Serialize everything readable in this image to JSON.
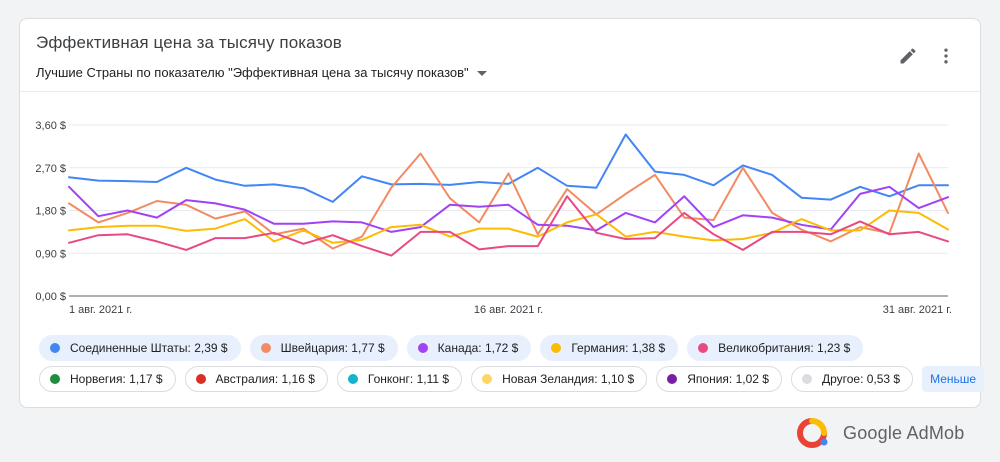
{
  "card": {
    "title": "Эффективная цена за тысячу показов",
    "subtitle": "Лучшие Страны по показателю \"Эффективная цена за тысячу показов\"",
    "edit_icon": "pencil-icon",
    "more_icon": "more-vert-icon"
  },
  "chart_data": {
    "type": "line",
    "y_ticks": [
      "3,60 $",
      "2,70 $",
      "1,80 $",
      "0,90 $",
      "0,00 $"
    ],
    "ylim": [
      0,
      3.6
    ],
    "x": [
      "1 авг. 2021 г.",
      "2",
      "3",
      "4",
      "5",
      "6",
      "7",
      "8",
      "9",
      "10",
      "11",
      "12",
      "13",
      "14",
      "15",
      "16 авг. 2021 г.",
      "17",
      "18",
      "19",
      "20",
      "21",
      "22",
      "23",
      "24",
      "25",
      "26",
      "27",
      "28",
      "29",
      "30",
      "31 авг. 2021 г."
    ],
    "x_tick_labels": [
      "1 авг. 2021 г.",
      "16 авг. 2021 г.",
      "31 авг. 2021 г."
    ],
    "grid": true,
    "series": [
      {
        "name": "Соединенные Штаты",
        "color": "#4285f4",
        "values": [
          2.5,
          2.43,
          2.42,
          2.4,
          2.7,
          2.45,
          2.32,
          2.35,
          2.27,
          1.98,
          2.52,
          2.35,
          2.36,
          2.34,
          2.4,
          2.36,
          2.7,
          2.32,
          2.28,
          3.4,
          2.62,
          2.55,
          2.33,
          2.75,
          2.55,
          2.07,
          2.03,
          2.3,
          2.1,
          2.33,
          2.33
        ]
      },
      {
        "name": "Швейцария",
        "color": "#f28b63",
        "values": [
          1.95,
          1.55,
          1.75,
          2.0,
          1.92,
          1.63,
          1.78,
          1.3,
          1.42,
          1.0,
          1.25,
          2.28,
          3.0,
          2.06,
          1.55,
          2.58,
          1.3,
          2.25,
          1.72,
          2.15,
          2.55,
          1.65,
          1.6,
          2.7,
          1.75,
          1.4,
          1.15,
          1.45,
          1.32,
          3.0,
          1.75
        ]
      },
      {
        "name": "Канада",
        "color": "#a142f4",
        "values": [
          2.3,
          1.68,
          1.8,
          1.65,
          2.02,
          1.95,
          1.82,
          1.52,
          1.52,
          1.57,
          1.55,
          1.35,
          1.45,
          1.92,
          1.88,
          1.92,
          1.5,
          1.48,
          1.38,
          1.75,
          1.55,
          2.1,
          1.45,
          1.7,
          1.65,
          1.5,
          1.4,
          2.15,
          2.3,
          1.85,
          2.08
        ]
      },
      {
        "name": "Германия",
        "color": "#fbbc04",
        "values": [
          1.38,
          1.45,
          1.48,
          1.48,
          1.37,
          1.42,
          1.62,
          1.15,
          1.38,
          1.12,
          1.18,
          1.45,
          1.5,
          1.25,
          1.42,
          1.42,
          1.25,
          1.55,
          1.72,
          1.25,
          1.35,
          1.25,
          1.17,
          1.2,
          1.33,
          1.62,
          1.38,
          1.38,
          1.8,
          1.75,
          1.4
        ]
      },
      {
        "name": "Великобритания",
        "color": "#e94982",
        "values": [
          1.12,
          1.28,
          1.3,
          1.15,
          0.97,
          1.22,
          1.22,
          1.33,
          1.1,
          1.28,
          1.05,
          0.85,
          1.35,
          1.35,
          0.98,
          1.05,
          1.05,
          2.1,
          1.33,
          1.2,
          1.22,
          1.75,
          1.3,
          0.97,
          1.35,
          1.35,
          1.3,
          1.57,
          1.3,
          1.35,
          1.15
        ]
      }
    ]
  },
  "legend": {
    "row1": [
      {
        "label": "Соединенные Штаты: 2,39 $",
        "color": "#4285f4",
        "active": true
      },
      {
        "label": "Швейцария: 1,77 $",
        "color": "#f28b63",
        "active": true
      },
      {
        "label": "Канада: 1,72 $",
        "color": "#a142f4",
        "active": true
      },
      {
        "label": "Германия: 1,38 $",
        "color": "#fbbc04",
        "active": true
      },
      {
        "label": "Великобритания: 1,23 $",
        "color": "#e94982",
        "active": true
      }
    ],
    "row2": [
      {
        "label": "Норвегия: 1,17 $",
        "color": "#1e8e3e",
        "active": false
      },
      {
        "label": "Австралия: 1,16 $",
        "color": "#d93025",
        "active": false
      },
      {
        "label": "Гонконг: 1,11 $",
        "color": "#12b5cb",
        "active": false
      },
      {
        "label": "Новая Зеландия: 1,10 $",
        "color": "#fdd663",
        "active": false
      },
      {
        "label": "Япония: 1,02 $",
        "color": "#7b1fa2",
        "active": false
      },
      {
        "label": "Другое: 0,53 $",
        "color": "#dadce0",
        "active": false
      }
    ],
    "less_label": "Меньше"
  },
  "brand": {
    "name": "Google AdMob",
    "icon": "admob-logo-icon"
  }
}
